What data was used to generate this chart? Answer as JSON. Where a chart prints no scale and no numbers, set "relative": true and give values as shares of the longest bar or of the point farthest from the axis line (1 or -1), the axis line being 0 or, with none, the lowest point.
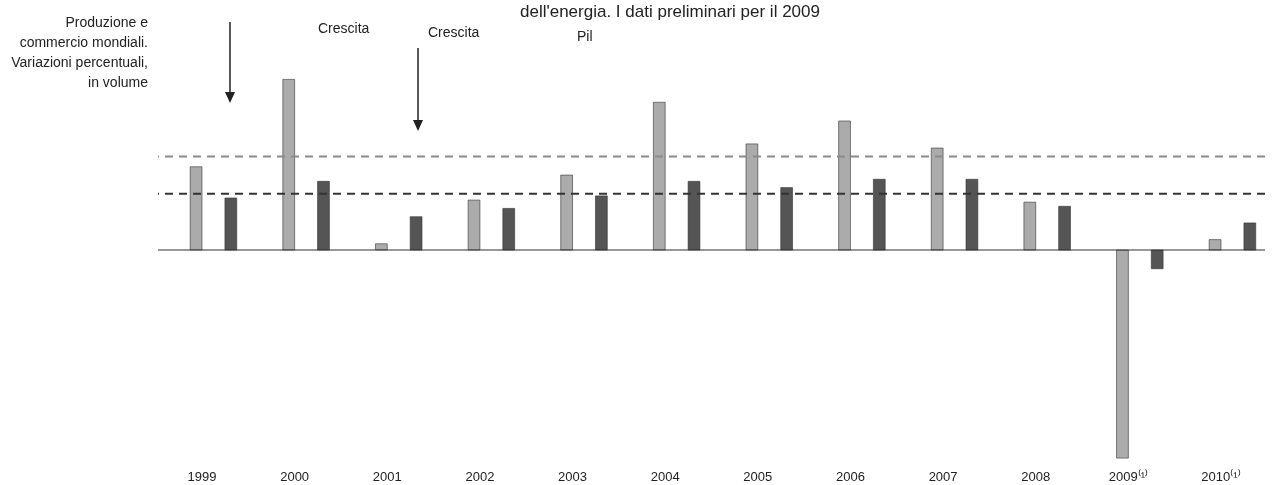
{
  "chart_data": {
    "type": "bar",
    "relative": true,
    "ylabel": "Produzione e commercio mondiali. Variazioni percentuali, in volume",
    "categories": [
      "1999",
      "2000",
      "2001",
      "2002",
      "2003",
      "2004",
      "2005",
      "2006",
      "2007",
      "2008",
      "2009⁽¹⁾",
      "2010⁽¹⁾"
    ],
    "series": [
      {
        "color": "#ababab",
        "values": [
          0.4,
          0.82,
          0.03,
          0.24,
          0.36,
          0.71,
          0.51,
          0.62,
          0.49,
          0.23,
          -1,
          0.05
        ]
      },
      {
        "color": "#555555",
        "values": [
          0.25,
          0.33,
          0.16,
          0.2,
          0.26,
          0.33,
          0.3,
          0.34,
          0.34,
          0.21,
          -0.09,
          0.13
        ]
      }
    ],
    "ref_lines": [
      {
        "axis": "y",
        "value": 0.45,
        "color": "#8a8a8a",
        "line_style": "dashed"
      },
      {
        "axis": "y",
        "value": 0.27,
        "color": "#333333",
        "line_style": "dashed"
      }
    ],
    "annotations": [
      "dell'energia. I dati preliminari per il 2009",
      "Crescita",
      "Crescita",
      "Pil"
    ]
  }
}
